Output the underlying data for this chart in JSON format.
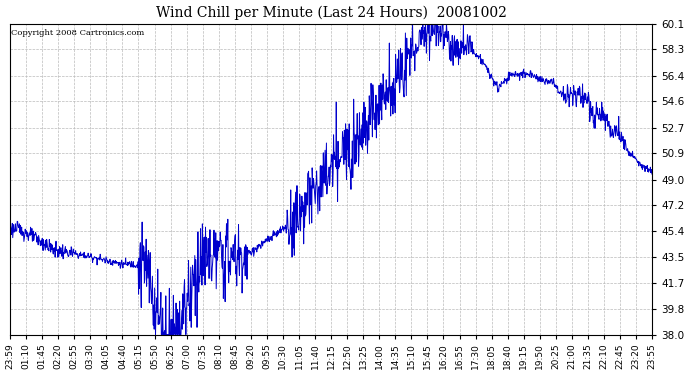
{
  "title": "Wind Chill per Minute (Last 24 Hours)  20081002",
  "copyright": "Copyright 2008 Cartronics.com",
  "line_color": "#0000CC",
  "background_color": "#ffffff",
  "grid_color": "#bbbbbb",
  "ylim": [
    38.0,
    60.1
  ],
  "yticks": [
    38.0,
    39.8,
    41.7,
    43.5,
    45.4,
    47.2,
    49.0,
    50.9,
    52.7,
    54.6,
    56.4,
    58.3,
    60.1
  ],
  "xtick_labels": [
    "23:59",
    "01:10",
    "01:45",
    "02:20",
    "02:55",
    "03:30",
    "04:05",
    "04:40",
    "05:15",
    "05:50",
    "06:25",
    "07:00",
    "07:35",
    "08:10",
    "08:45",
    "09:20",
    "09:55",
    "10:30",
    "11:05",
    "11:40",
    "12:15",
    "12:50",
    "13:25",
    "14:00",
    "14:35",
    "15:10",
    "15:45",
    "16:20",
    "16:55",
    "17:30",
    "18:05",
    "18:40",
    "19:15",
    "19:50",
    "20:25",
    "21:00",
    "21:35",
    "22:10",
    "22:45",
    "23:20",
    "23:55"
  ],
  "line_width": 0.7,
  "figwidth": 6.9,
  "figheight": 3.75,
  "dpi": 100
}
